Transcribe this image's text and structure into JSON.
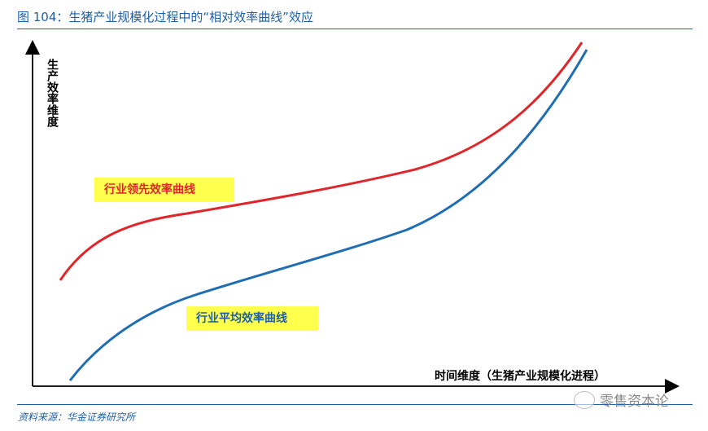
{
  "header": {
    "title": "图 104：生猪产业规模化过程中的“相对效率曲线”效应"
  },
  "axes": {
    "y_label": "生产效率维度",
    "x_label": "时间维度（生猪产业规模化进程）"
  },
  "curves": [
    {
      "name": "行业领先效率曲线",
      "color": "#e0262b"
    },
    {
      "name": "行业平均效率曲线",
      "color": "#1f6db3"
    }
  ],
  "footer": {
    "source": "资料来源：华金证券研究所"
  },
  "watermark": {
    "text": "零售资本论"
  }
}
